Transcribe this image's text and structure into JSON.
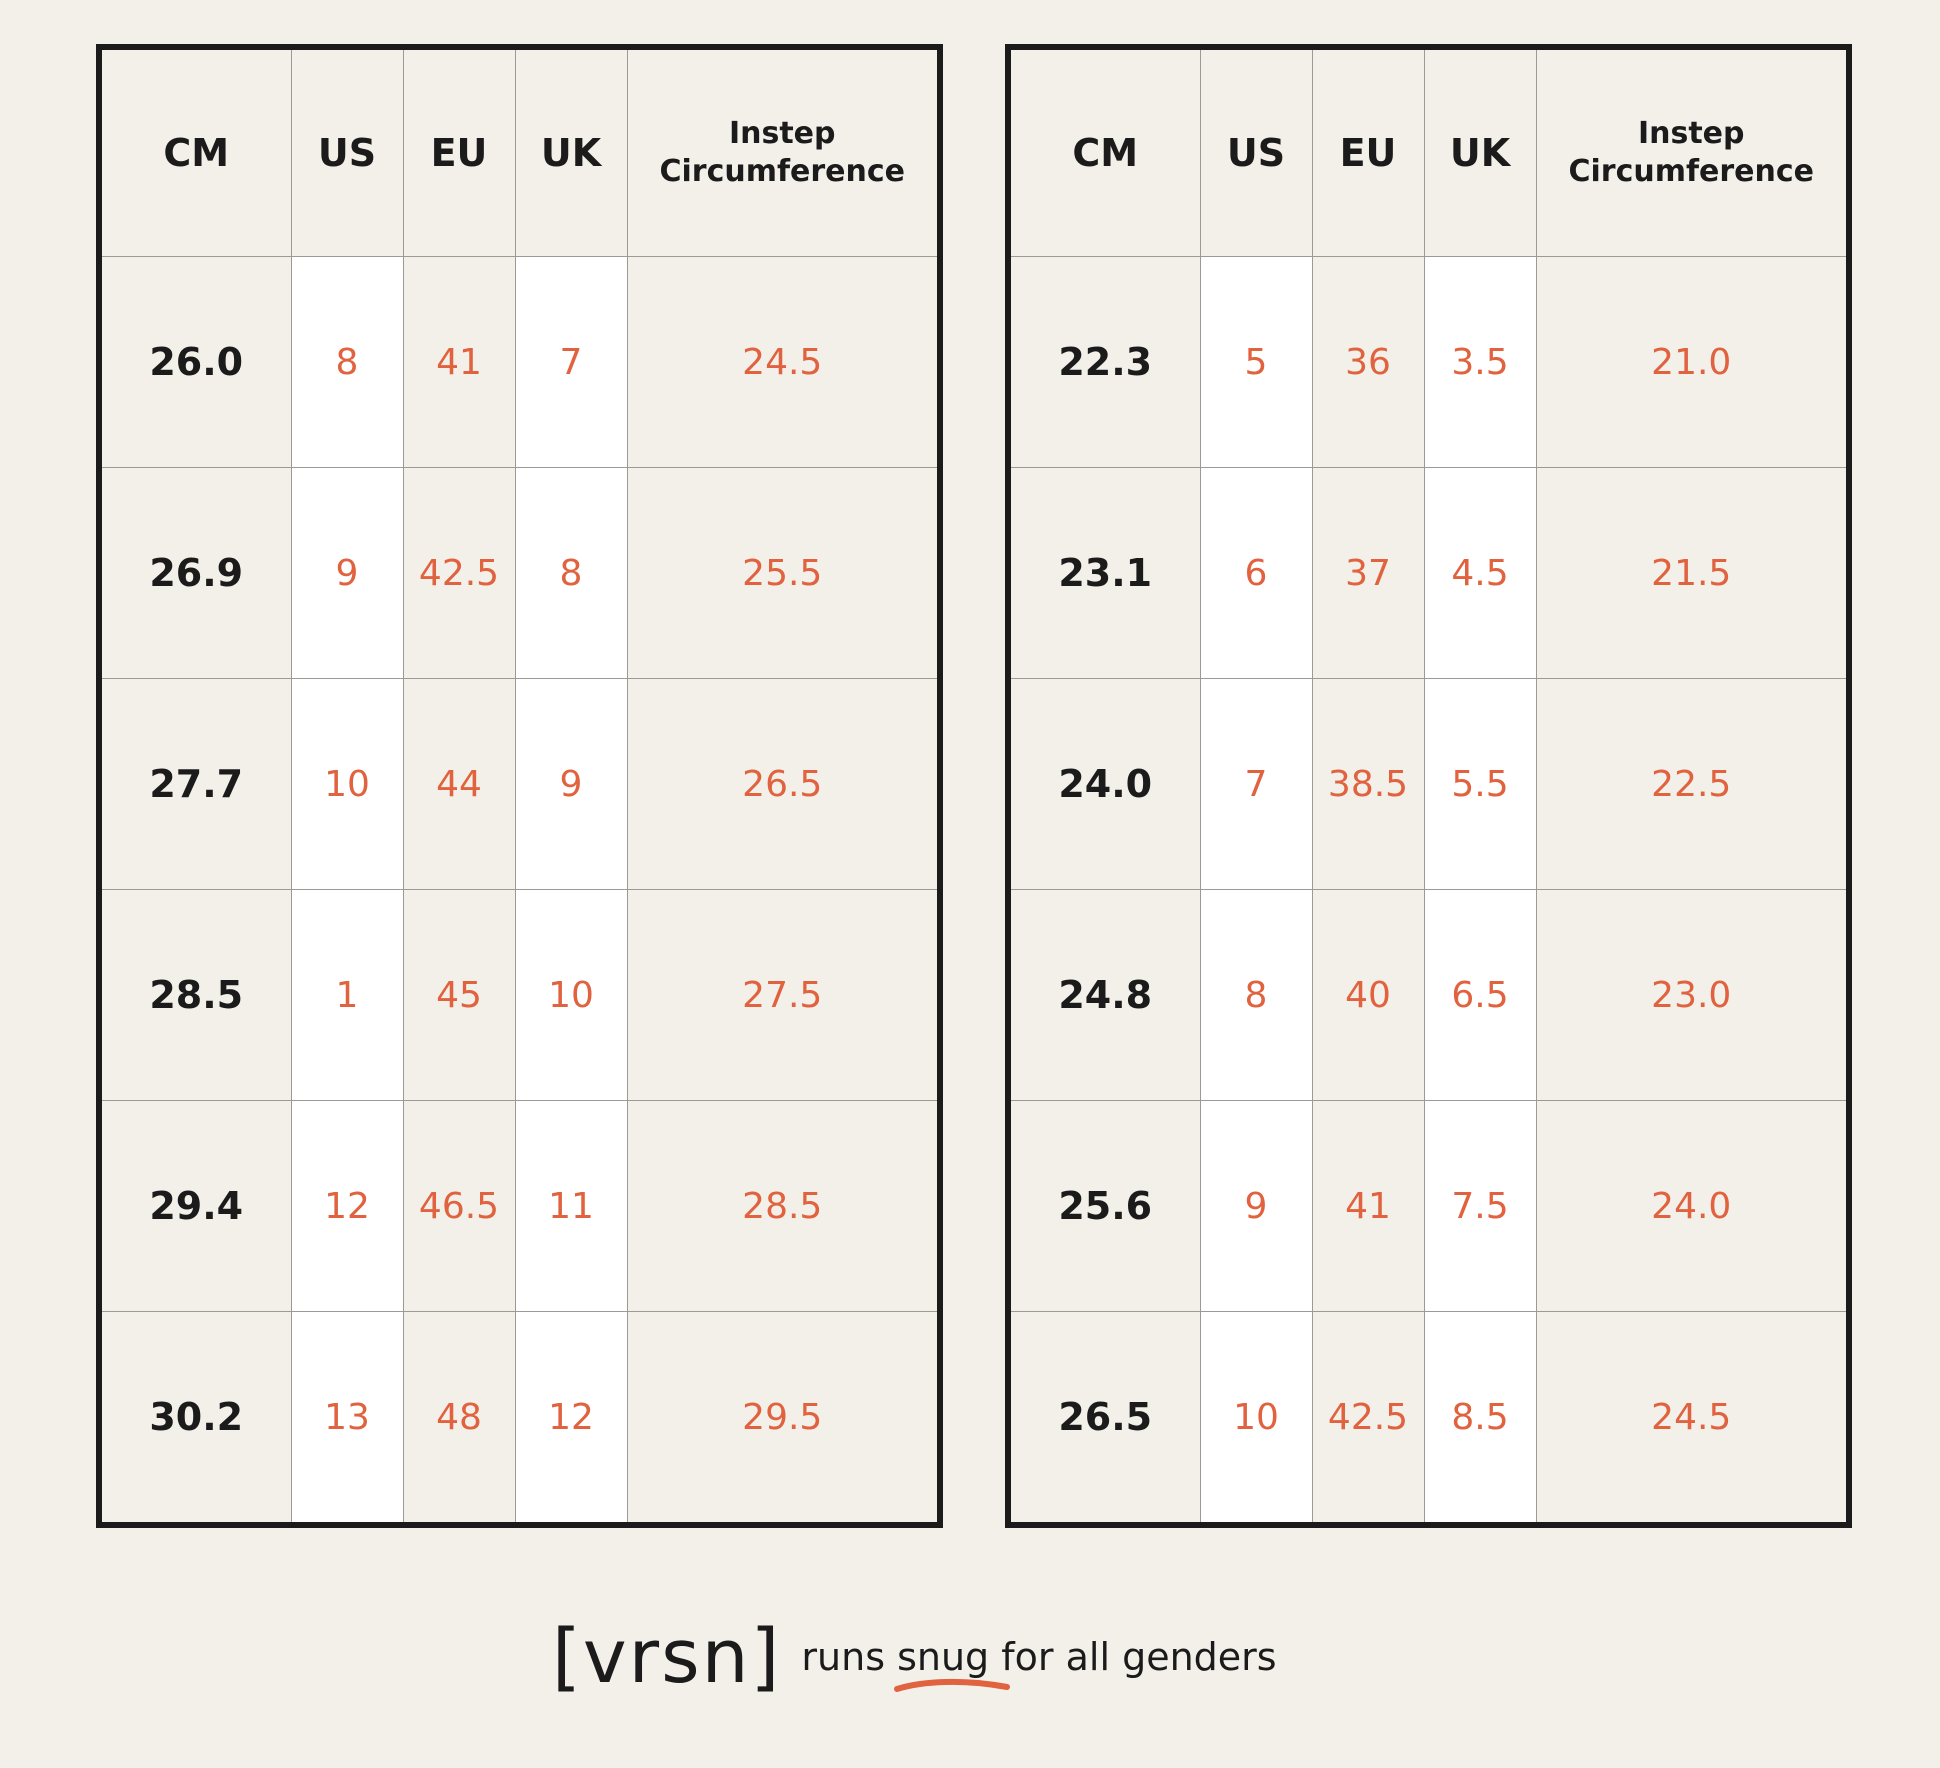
{
  "headers": {
    "cm": "CM",
    "us": "US",
    "eu": "EU",
    "uk": "UK",
    "instep_line1": "Instep",
    "instep_line2": "Circumference"
  },
  "left_table": {
    "rows": [
      {
        "cm": "26.0",
        "us": "8",
        "eu": "41",
        "uk": "7",
        "instep": "24.5"
      },
      {
        "cm": "26.9",
        "us": "9",
        "eu": "42.5",
        "uk": "8",
        "instep": "25.5"
      },
      {
        "cm": "27.7",
        "us": "10",
        "eu": "44",
        "uk": "9",
        "instep": "26.5"
      },
      {
        "cm": "28.5",
        "us": "1",
        "eu": "45",
        "uk": "10",
        "instep": "27.5"
      },
      {
        "cm": "29.4",
        "us": "12",
        "eu": "46.5",
        "uk": "11",
        "instep": "28.5"
      },
      {
        "cm": "30.2",
        "us": "13",
        "eu": "48",
        "uk": "12",
        "instep": "29.5"
      }
    ]
  },
  "right_table": {
    "rows": [
      {
        "cm": "22.3",
        "us": "5",
        "eu": "36",
        "uk": "3.5",
        "instep": "21.0"
      },
      {
        "cm": "23.1",
        "us": "6",
        "eu": "37",
        "uk": "4.5",
        "instep": "21.5"
      },
      {
        "cm": "24.0",
        "us": "7",
        "eu": "38.5",
        "uk": "5.5",
        "instep": "22.5"
      },
      {
        "cm": "24.8",
        "us": "8",
        "eu": "40",
        "uk": "6.5",
        "instep": "23.0"
      },
      {
        "cm": "25.6",
        "us": "9",
        "eu": "41",
        "uk": "7.5",
        "instep": "24.0"
      },
      {
        "cm": "26.5",
        "us": "10",
        "eu": "42.5",
        "uk": "8.5",
        "instep": "24.5"
      }
    ]
  },
  "footer": {
    "logo": "[vrsn]",
    "tagline_before": "runs ",
    "tagline_highlight": "snug",
    "tagline_after": " for all genders",
    "accent_color": "#e0623e"
  }
}
